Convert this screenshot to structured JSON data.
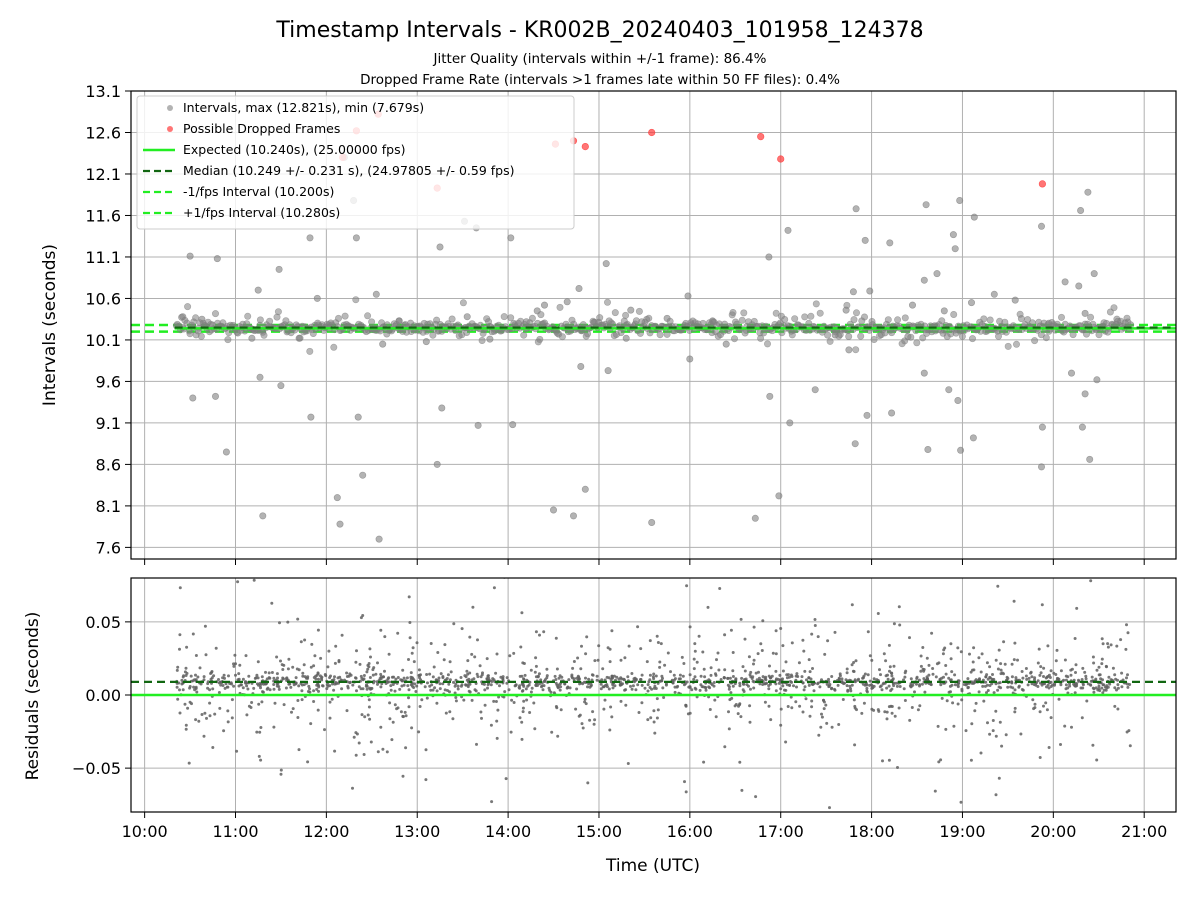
{
  "chart_data": [
    {
      "type": "scatter",
      "title": "Timestamp Intervals - KR002B_20240403_101958_124378",
      "subtitle_lines": [
        "Jitter Quality (intervals within +/-1 frame): 86.4%",
        "Dropped Frame Rate (intervals >1 frames late within 50 FF files): 0.4%"
      ],
      "ylabel": "Intervals (seconds)",
      "xlabel": "",
      "xlim": [
        9.85,
        21.35
      ],
      "ylim": [
        7.46,
        13.1
      ],
      "yticks": [
        "7.6",
        "8.1",
        "8.6",
        "9.1",
        "9.6",
        "10.1",
        "10.6",
        "11.1",
        "11.6",
        "12.1",
        "12.6",
        "13.1"
      ],
      "grid": true,
      "legend_position": "top-left",
      "legend": [
        "Intervals, max (12.821s), min (7.679s)",
        "Possible Dropped Frames",
        "Expected (10.240s), (25.00000 fps)",
        "Median (10.249 +/- 0.231 s), (24.97805 +/- 0.59 fps)",
        "-1/fps Interval (10.200s)",
        "+1/fps Interval (10.280s)"
      ],
      "reference_lines": {
        "expected": 10.24,
        "median": 10.249,
        "minus_one_fps": 10.2,
        "plus_one_fps": 10.28
      },
      "data_range": {
        "x_start": 10.35,
        "x_end": 20.85
      },
      "intervals_outliers": [
        [
          10.42,
          10.38
        ],
        [
          10.5,
          11.11
        ],
        [
          10.53,
          9.4
        ],
        [
          10.63,
          10.35
        ],
        [
          10.78,
          9.42
        ],
        [
          10.8,
          11.08
        ],
        [
          10.9,
          8.75
        ],
        [
          11.18,
          10.12
        ],
        [
          11.25,
          10.7
        ],
        [
          11.27,
          9.65
        ],
        [
          11.3,
          7.98
        ],
        [
          11.48,
          10.95
        ],
        [
          11.5,
          9.55
        ],
        [
          11.82,
          11.33
        ],
        [
          11.83,
          9.17
        ],
        [
          11.9,
          10.6
        ],
        [
          12.12,
          8.2
        ],
        [
          12.15,
          7.88
        ],
        [
          12.2,
          12.3
        ],
        [
          12.3,
          11.78
        ],
        [
          12.33,
          11.33
        ],
        [
          12.35,
          9.17
        ],
        [
          12.4,
          8.47
        ],
        [
          12.55,
          10.65
        ],
        [
          12.58,
          7.7
        ],
        [
          12.62,
          10.05
        ],
        [
          13.1,
          10.08
        ],
        [
          13.22,
          8.6
        ],
        [
          13.25,
          11.22
        ],
        [
          13.27,
          9.28
        ],
        [
          13.52,
          11.53
        ],
        [
          13.55,
          10.38
        ],
        [
          13.65,
          11.45
        ],
        [
          13.67,
          9.07
        ],
        [
          14.03,
          11.33
        ],
        [
          14.05,
          9.08
        ],
        [
          14.32,
          10.45
        ],
        [
          14.4,
          10.52
        ],
        [
          14.5,
          8.05
        ],
        [
          14.65,
          10.56
        ],
        [
          14.72,
          7.98
        ],
        [
          14.78,
          10.72
        ],
        [
          14.85,
          8.3
        ],
        [
          14.8,
          9.78
        ],
        [
          15.08,
          11.02
        ],
        [
          15.1,
          9.73
        ],
        [
          15.35,
          10.46
        ],
        [
          15.58,
          7.9
        ],
        [
          15.98,
          10.63
        ],
        [
          16.0,
          9.87
        ],
        [
          16.4,
          10.05
        ],
        [
          16.72,
          7.95
        ],
        [
          16.87,
          11.1
        ],
        [
          16.88,
          9.42
        ],
        [
          16.98,
          8.22
        ],
        [
          17.08,
          11.42
        ],
        [
          17.1,
          9.1
        ],
        [
          17.38,
          9.5
        ],
        [
          17.72,
          10.46
        ],
        [
          17.75,
          9.98
        ],
        [
          17.8,
          10.68
        ],
        [
          17.83,
          11.68
        ],
        [
          17.82,
          8.85
        ],
        [
          17.93,
          11.3
        ],
        [
          17.95,
          9.19
        ],
        [
          17.98,
          10.69
        ],
        [
          18.2,
          11.27
        ],
        [
          18.22,
          9.22
        ],
        [
          18.45,
          10.52
        ],
        [
          18.58,
          10.82
        ],
        [
          18.6,
          11.73
        ],
        [
          18.62,
          8.78
        ],
        [
          18.58,
          9.7
        ],
        [
          18.72,
          10.9
        ],
        [
          18.8,
          10.45
        ],
        [
          18.85,
          9.5
        ],
        [
          18.9,
          11.37
        ],
        [
          18.92,
          11.2
        ],
        [
          18.95,
          9.37
        ],
        [
          18.97,
          11.78
        ],
        [
          18.98,
          8.77
        ],
        [
          19.1,
          10.55
        ],
        [
          19.12,
          8.92
        ],
        [
          19.13,
          11.58
        ],
        [
          19.35,
          10.65
        ],
        [
          19.58,
          10.58
        ],
        [
          19.87,
          11.47
        ],
        [
          19.88,
          9.05
        ],
        [
          19.87,
          8.57
        ],
        [
          20.13,
          10.8
        ],
        [
          20.2,
          9.7
        ],
        [
          20.3,
          11.66
        ],
        [
          20.32,
          9.05
        ],
        [
          20.35,
          9.45
        ],
        [
          20.38,
          11.88
        ],
        [
          20.4,
          8.66
        ],
        [
          20.45,
          10.9
        ],
        [
          20.48,
          9.62
        ],
        [
          20.35,
          10.42
        ],
        [
          20.28,
          10.75
        ],
        [
          19.95,
          10.3
        ],
        [
          18.4,
          10.14
        ],
        [
          17.6,
          10.16
        ],
        [
          16.25,
          10.33
        ],
        [
          15.75,
          10.36
        ],
        [
          15.3,
          10.12
        ],
        [
          14.2,
          10.32
        ],
        [
          13.8,
          10.11
        ],
        [
          12.8,
          10.33
        ],
        [
          11.7,
          10.12
        ]
      ],
      "dropped_frames": [
        [
          12.18,
          12.3
        ],
        [
          12.33,
          12.62
        ],
        [
          12.57,
          12.82
        ],
        [
          13.22,
          11.93
        ],
        [
          14.52,
          12.46
        ],
        [
          14.72,
          12.5
        ],
        [
          14.85,
          12.43
        ],
        [
          15.58,
          12.6
        ],
        [
          16.78,
          12.55
        ],
        [
          17.0,
          12.28
        ],
        [
          19.88,
          11.98
        ]
      ]
    },
    {
      "type": "scatter",
      "title": "",
      "ylabel": "Residuals (seconds)",
      "xlabel": "Time (UTC)",
      "xlim": [
        9.85,
        21.35
      ],
      "ylim": [
        -0.08,
        0.08
      ],
      "yticks": [
        "−0.05",
        "0.00",
        "0.05"
      ],
      "xticks": [
        "10:00",
        "11:00",
        "12:00",
        "13:00",
        "14:00",
        "15:00",
        "16:00",
        "17:00",
        "18:00",
        "19:00",
        "20:00",
        "21:00"
      ],
      "grid": true,
      "reference_lines": {
        "expected": 0.0,
        "median": 0.009
      },
      "data_range": {
        "x_start": 10.35,
        "x_end": 20.85
      }
    }
  ],
  "colors": {
    "intervals": "#808080",
    "dropped": "#ff3b3b",
    "expected": "#22ee22",
    "median": "#116611",
    "fps_bounds": "#22ee22",
    "grid": "#b0b0b0",
    "residuals": "#606060"
  }
}
